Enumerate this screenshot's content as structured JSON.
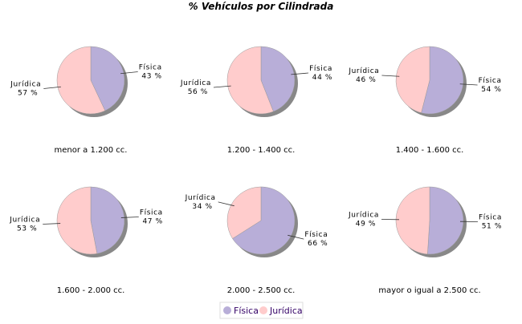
{
  "chart_data": {
    "type": "pie",
    "title": "% Vehículos por Cilindrada",
    "legend": {
      "placement": "bottom",
      "entries": [
        "Física",
        "Jurídica"
      ]
    },
    "colors": {
      "Física": "#b8aed8",
      "Jurídica": "#ffcccc"
    },
    "pies": [
      {
        "title": "menor a 1.200 cc.",
        "slices": [
          {
            "label": "Física",
            "value": 43,
            "text": "43 %"
          },
          {
            "label": "Jurídica",
            "value": 57,
            "text": "57 %"
          }
        ]
      },
      {
        "title": "1.200 - 1.400 cc.",
        "slices": [
          {
            "label": "Física",
            "value": 44,
            "text": "44 %"
          },
          {
            "label": "Jurídica",
            "value": 56,
            "text": "56 %"
          }
        ]
      },
      {
        "title": "1.400 - 1.600 cc.",
        "slices": [
          {
            "label": "Física",
            "value": 54,
            "text": "54 %"
          },
          {
            "label": "Jurídica",
            "value": 46,
            "text": "46 %"
          }
        ]
      },
      {
        "title": "1.600 - 2.000 cc.",
        "slices": [
          {
            "label": "Física",
            "value": 47,
            "text": "47 %"
          },
          {
            "label": "Jurídica",
            "value": 53,
            "text": "53 %"
          }
        ]
      },
      {
        "title": "2.000 - 2.500 cc.",
        "slices": [
          {
            "label": "Física",
            "value": 66,
            "text": "66 %"
          },
          {
            "label": "Jurídica",
            "value": 34,
            "text": "34 %"
          }
        ]
      },
      {
        "title": "mayor o igual a 2.500 cc.",
        "slices": [
          {
            "label": "Física",
            "value": 51,
            "text": "51 %"
          },
          {
            "label": "Jurídica",
            "value": 49,
            "text": "49 %"
          }
        ]
      }
    ]
  }
}
